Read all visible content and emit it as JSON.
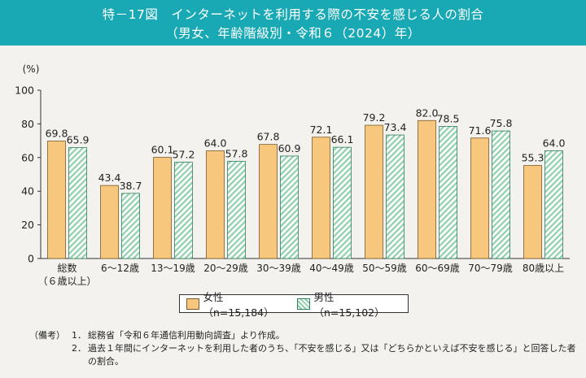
{
  "header": {
    "title": "特－17図　インターネットを利用する際の不安を感じる人の割合",
    "subtitle": "（男女、年齢階級別・令和６（2024）年）"
  },
  "colors": {
    "female": "#f8c77e",
    "male_stripe": "#8fd0aa",
    "title_bg": "#19a9b4"
  },
  "chart_data": {
    "type": "bar",
    "ylabel": "(%)",
    "ylim": [
      0,
      100
    ],
    "yticks": [
      0,
      20,
      40,
      60,
      80,
      100
    ],
    "grid": false,
    "categories": [
      "総数",
      "6～12歳",
      "13～19歳",
      "20～29歳",
      "30～39歳",
      "40～49歳",
      "50～59歳",
      "60～69歳",
      "70～79歳",
      "80歳以上"
    ],
    "category_sublabels": [
      "（６歳以上）",
      "",
      "",
      "",
      "",
      "",
      "",
      "",
      "",
      ""
    ],
    "series": [
      {
        "name": "女性（n=15,184）",
        "values": [
          69.8,
          43.4,
          60.1,
          64.0,
          67.8,
          72.1,
          79.2,
          82.0,
          71.6,
          55.3
        ]
      },
      {
        "name": "男性（n=15,102）",
        "values": [
          65.9,
          38.7,
          57.2,
          57.8,
          60.9,
          66.1,
          73.4,
          78.5,
          75.8,
          64.0
        ]
      }
    ],
    "legend_position": "bottom"
  },
  "notes": {
    "prefix": "（備考）",
    "items": [
      {
        "num": "1．",
        "text": "総務省「令和６年通信利用動向調査」より作成。"
      },
      {
        "num": "2．",
        "text": "過去１年間にインターネットを利用した者のうち、「不安を感じる」又は「どちらかといえば不安を感じる」と回答した者の割合。"
      }
    ]
  }
}
